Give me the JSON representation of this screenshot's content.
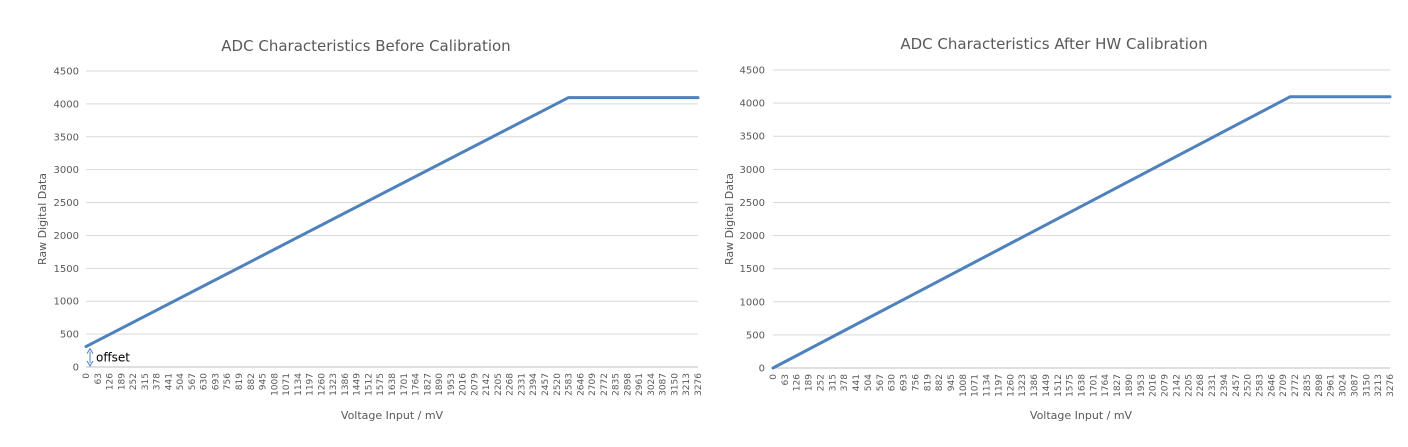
{
  "colors": {
    "series": "#4f81bd",
    "annotation": "#4f81bd"
  },
  "chart_data": [
    {
      "type": "line",
      "title": "ADC Characteristics Before Calibration",
      "xlabel": "Voltage Input / mV",
      "ylabel": "Raw Digital Data",
      "ylim": [
        0,
        4500
      ],
      "xlim": [
        0,
        3276
      ],
      "grid": true,
      "yticks": [
        0,
        500,
        1000,
        1500,
        2000,
        2500,
        3000,
        3500,
        4000,
        4500
      ],
      "xticks": [
        0,
        63,
        126,
        189,
        252,
        315,
        378,
        441,
        504,
        567,
        630,
        693,
        756,
        819,
        882,
        945,
        1008,
        1071,
        1134,
        1197,
        1260,
        1323,
        1386,
        1449,
        1512,
        1575,
        1638,
        1701,
        1764,
        1827,
        1890,
        1953,
        2016,
        2079,
        2142,
        2205,
        2268,
        2331,
        2394,
        2457,
        2520,
        2583,
        2646,
        2709,
        2772,
        2835,
        2898,
        2961,
        3024,
        3087,
        3150,
        3213,
        3276
      ],
      "series": [
        {
          "x": [
            0,
            2583,
            3276
          ],
          "y": [
            310,
            4095,
            4095
          ]
        }
      ],
      "annotations": [
        {
          "text": "offset",
          "x": 0,
          "y_from": 0,
          "y_to": 310
        }
      ]
    },
    {
      "type": "line",
      "title": "ADC Characteristics After HW Calibration",
      "xlabel": "Voltage Input / mV",
      "ylabel": "Raw Digital Data",
      "ylim": [
        0,
        4500
      ],
      "xlim": [
        0,
        3276
      ],
      "grid": true,
      "yticks": [
        0,
        500,
        1000,
        1500,
        2000,
        2500,
        3000,
        3500,
        4000,
        4500
      ],
      "xticks": [
        0,
        63,
        126,
        189,
        252,
        315,
        378,
        441,
        504,
        567,
        630,
        693,
        756,
        819,
        882,
        945,
        1008,
        1071,
        1134,
        1197,
        1260,
        1323,
        1386,
        1449,
        1512,
        1575,
        1638,
        1701,
        1764,
        1827,
        1890,
        1953,
        2016,
        2079,
        2142,
        2205,
        2268,
        2331,
        2394,
        2457,
        2520,
        2583,
        2646,
        2709,
        2772,
        2835,
        2898,
        2961,
        3024,
        3087,
        3150,
        3213,
        3276
      ],
      "series": [
        {
          "x": [
            0,
            2745,
            3276
          ],
          "y": [
            0,
            4095,
            4095
          ]
        }
      ],
      "annotations": []
    }
  ]
}
